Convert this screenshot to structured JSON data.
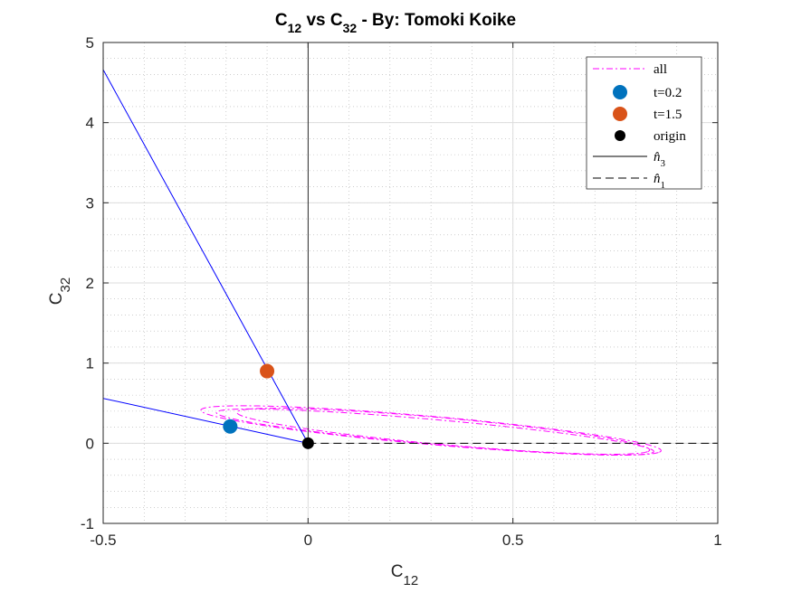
{
  "chart_data": {
    "type": "line",
    "title": {
      "main1": "C",
      "sub1": "12",
      "main2": " vs C",
      "sub2": "32",
      "main3": " - By: Tomoki Koike"
    },
    "xlabel": {
      "main": "C",
      "sub": "12"
    },
    "ylabel": {
      "main": "C",
      "sub": "32"
    },
    "xlim": [
      -0.5,
      1
    ],
    "ylim": [
      -1,
      5
    ],
    "xticks": [
      -0.5,
      0,
      0.5,
      1
    ],
    "xtick_labels": [
      "-0.5",
      "0",
      "0.5",
      "1"
    ],
    "yticks": [
      -1,
      0,
      1,
      2,
      3,
      4,
      5
    ],
    "ytick_labels": [
      "-1",
      "0",
      "1",
      "2",
      "3",
      "4",
      "5"
    ],
    "grid": true,
    "minor_grid": true,
    "legend_position": "top-right",
    "colors": {
      "all": "#ff00ff",
      "t02": "#0072bd",
      "t15": "#d95319",
      "origin": "#000000",
      "n_lines": "#0000ff",
      "axes": "#262626"
    },
    "ellipses": [
      {
        "cx": 0.3,
        "cy": 0.16,
        "a": 0.62,
        "b": 0.16,
        "rot_deg": -26
      },
      {
        "cx": 0.31,
        "cy": 0.14,
        "a": 0.59,
        "b": 0.14,
        "rot_deg": -26
      },
      {
        "cx": 0.33,
        "cy": 0.15,
        "a": 0.56,
        "b": 0.15,
        "rot_deg": -27
      }
    ],
    "points": [
      {
        "name": "t=0.2",
        "x": -0.19,
        "y": 0.21
      },
      {
        "name": "t=1.5",
        "x": -0.1,
        "y": 0.9
      },
      {
        "name": "origin",
        "x": 0,
        "y": 0
      }
    ],
    "n3_line": {
      "x": [
        0,
        0
      ],
      "y": [
        0,
        5
      ]
    },
    "n1_line": {
      "x": [
        0,
        1
      ],
      "y": [
        0,
        0
      ]
    },
    "body_line_a": {
      "x": [
        0,
        -0.5
      ],
      "y": [
        0,
        4.66
      ]
    },
    "body_line_b": {
      "x": [
        0,
        -0.5
      ],
      "y": [
        0,
        0.56
      ]
    },
    "legend": [
      {
        "label": "all",
        "style": "dashdot"
      },
      {
        "label": "t=0.2",
        "style": "marker-blue"
      },
      {
        "label": "t=1.5",
        "style": "marker-orange"
      },
      {
        "label": "origin",
        "style": "marker-black"
      },
      {
        "label_main": "n̂",
        "label_sub": "3",
        "style": "solid"
      },
      {
        "label_main": "n̂",
        "label_sub": "1",
        "style": "dashed"
      }
    ]
  }
}
